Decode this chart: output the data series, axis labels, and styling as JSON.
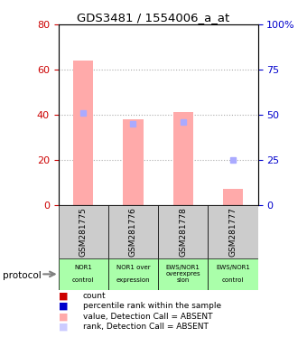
{
  "title": "GDS3481 / 1554006_a_at",
  "samples": [
    "GSM281775",
    "GSM281776",
    "GSM281778",
    "GSM281777"
  ],
  "bar_values": [
    64.0,
    38.0,
    41.0,
    7.0
  ],
  "rank_values": [
    51.0,
    45.0,
    46.0,
    25.0
  ],
  "bar_color": "#ffaaaa",
  "rank_color": "#aaaaff",
  "ylim_left": [
    0,
    80
  ],
  "ylim_right": [
    0,
    100
  ],
  "yticks_left": [
    0,
    20,
    40,
    60,
    80
  ],
  "ytick_labels_right": [
    "0",
    "25",
    "50",
    "75",
    "100%"
  ],
  "grid_color": "#aaaaaa",
  "left_tick_color": "#cc0000",
  "right_tick_color": "#0000cc",
  "bar_width": 0.4,
  "protocol_labels": [
    "NOR1\n\ncontrol",
    "NOR1 over\n\nexpression",
    "EWS/NOR1\noverexpres\nsion",
    "EWS/NOR1\n\ncontrol"
  ],
  "legend_items": [
    {
      "color": "#cc0000",
      "label": "count"
    },
    {
      "color": "#0000cc",
      "label": "percentile rank within the sample"
    },
    {
      "color": "#ffaaaa",
      "label": "value, Detection Call = ABSENT"
    },
    {
      "color": "#ccccff",
      "label": "rank, Detection Call = ABSENT"
    }
  ]
}
